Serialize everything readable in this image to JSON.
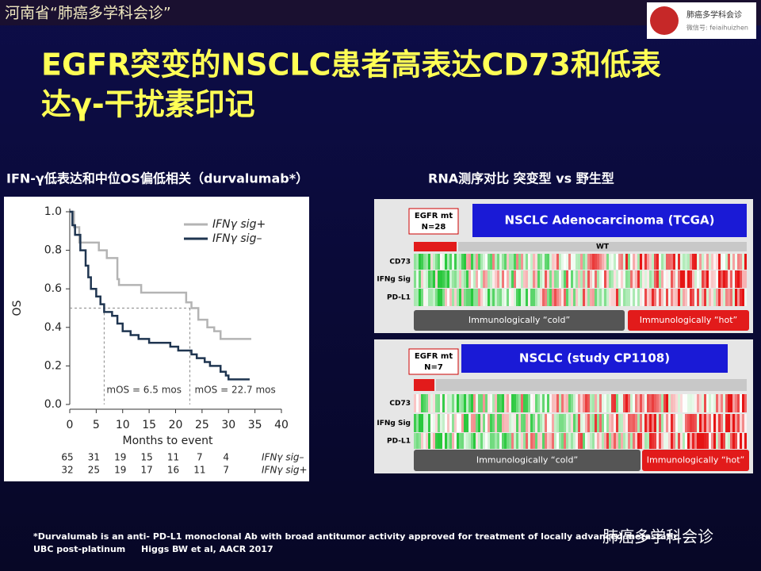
{
  "header": {
    "title": "河南省“肺癌多学科会诊”",
    "logo_name": "肺癌多学科会诊",
    "logo_id": "微信号: feiaihuizhen"
  },
  "slide_title": {
    "line1": "EGFR突变的NSCLC患者高表达CD73和低表",
    "line2": "达γ-干扰素印记"
  },
  "left_heading": "IFN-γ低表达和中位OS偏低相关（durvalumab*）",
  "right_heading": "RNA测序对比 突变型 vs 野生型",
  "km_chart": {
    "type": "line",
    "x_label": "Months to event",
    "y_label": "OS",
    "xlim": [
      0,
      40
    ],
    "xticks": [
      0,
      5,
      10,
      15,
      20,
      25,
      30,
      35,
      40
    ],
    "ylim": [
      0,
      1
    ],
    "yticks": [
      {
        "value": 0,
        "label": "0.0"
      },
      {
        "value": 0.2,
        "label": "0.2"
      },
      {
        "value": 0.4,
        "label": "0.4"
      },
      {
        "value": 0.6,
        "label": "0.6"
      },
      {
        "value": 0.8,
        "label": "0.8"
      },
      {
        "value": 1,
        "label": "1.0"
      }
    ],
    "series": [
      {
        "name": "IFNγ sig+",
        "color": "#b4b4b4",
        "x": [
          0,
          0.8,
          0.8,
          1.8,
          1.8,
          5.5,
          5.5,
          7,
          7,
          9,
          9,
          9.3,
          9.3,
          13.5,
          13.5,
          22,
          22,
          23,
          23,
          24.3,
          24.3,
          26,
          26,
          27.3,
          27.3,
          28.5,
          28.5,
          34.3
        ],
        "values": [
          1,
          1,
          0.92,
          0.92,
          0.84,
          0.84,
          0.8,
          0.8,
          0.76,
          0.76,
          0.65,
          0.65,
          0.62,
          0.62,
          0.58,
          0.58,
          0.53,
          0.53,
          0.5,
          0.5,
          0.44,
          0.44,
          0.4,
          0.4,
          0.38,
          0.38,
          0.34,
          0.34
        ]
      },
      {
        "name": "IFNγ sig–",
        "color": "#1f3550",
        "x": [
          0,
          0.5,
          0.5,
          1,
          1,
          2,
          2,
          3,
          3,
          3.5,
          3.5,
          4,
          4,
          5,
          5,
          5.8,
          5.8,
          6.5,
          6.5,
          8,
          8,
          9,
          9,
          10,
          10,
          11.5,
          11.5,
          13,
          13,
          15,
          15,
          19,
          19,
          20.5,
          20.5,
          23,
          23,
          24,
          24,
          25.5,
          25.5,
          26.5,
          26.5,
          28.5,
          28.5,
          29.5,
          29.5,
          30,
          30,
          34
        ],
        "values": [
          1,
          1,
          0.93,
          0.93,
          0.88,
          0.88,
          0.8,
          0.8,
          0.72,
          0.72,
          0.66,
          0.66,
          0.6,
          0.6,
          0.56,
          0.56,
          0.52,
          0.52,
          0.48,
          0.48,
          0.46,
          0.46,
          0.42,
          0.42,
          0.38,
          0.38,
          0.36,
          0.36,
          0.34,
          0.34,
          0.32,
          0.32,
          0.3,
          0.3,
          0.28,
          0.28,
          0.26,
          0.26,
          0.24,
          0.24,
          0.22,
          0.22,
          0.2,
          0.2,
          0.17,
          0.17,
          0.15,
          0.15,
          0.13,
          0.13
        ]
      }
    ],
    "median_level": 0.5,
    "medians": [
      6.5,
      22.7
    ],
    "annotations": [
      "mOS = 6.5 mos",
      "mOS = 22.7 mos"
    ],
    "risk_table": {
      "times": [
        0,
        5,
        10,
        15,
        20,
        25,
        30
      ],
      "rows": [
        {
          "label": "IFNγ sig–",
          "counts": [
            65,
            31,
            19,
            15,
            11,
            7,
            4
          ]
        },
        {
          "label": "IFNγ sig+",
          "counts": [
            32,
            25,
            19,
            17,
            16,
            11,
            7
          ]
        }
      ]
    }
  },
  "panels": [
    {
      "group_label": "EGFR mt",
      "group_n": "N=28",
      "title": "NSCLC Adenocarcinoma (TCGA)",
      "wt_label": "WT",
      "rows": [
        "CD73",
        "IFNg Sig",
        "PD-L1"
      ],
      "cold": "Immunologically “cold”",
      "hot": "Immunologically “hot”"
    },
    {
      "group_label": "EGFR mt",
      "group_n": "N=7",
      "title": "NSCLC  (study CP1108)",
      "rows": [
        "CD73",
        "IFNg Sig",
        "PD-L1"
      ],
      "cold": "Immunologically “cold”",
      "hot": "Immunologically “hot”"
    }
  ],
  "footnote": {
    "line1": "*Durvalumab is an anti- PD-L1 monoclonal Ab with broad antitumor activity approved for treatment of locally advanced/metastatic",
    "line2a": "UBC post-platinum",
    "line2b": "Higgs BW et al, AACR 2017"
  },
  "watermark": "肺癌多学科会诊"
}
